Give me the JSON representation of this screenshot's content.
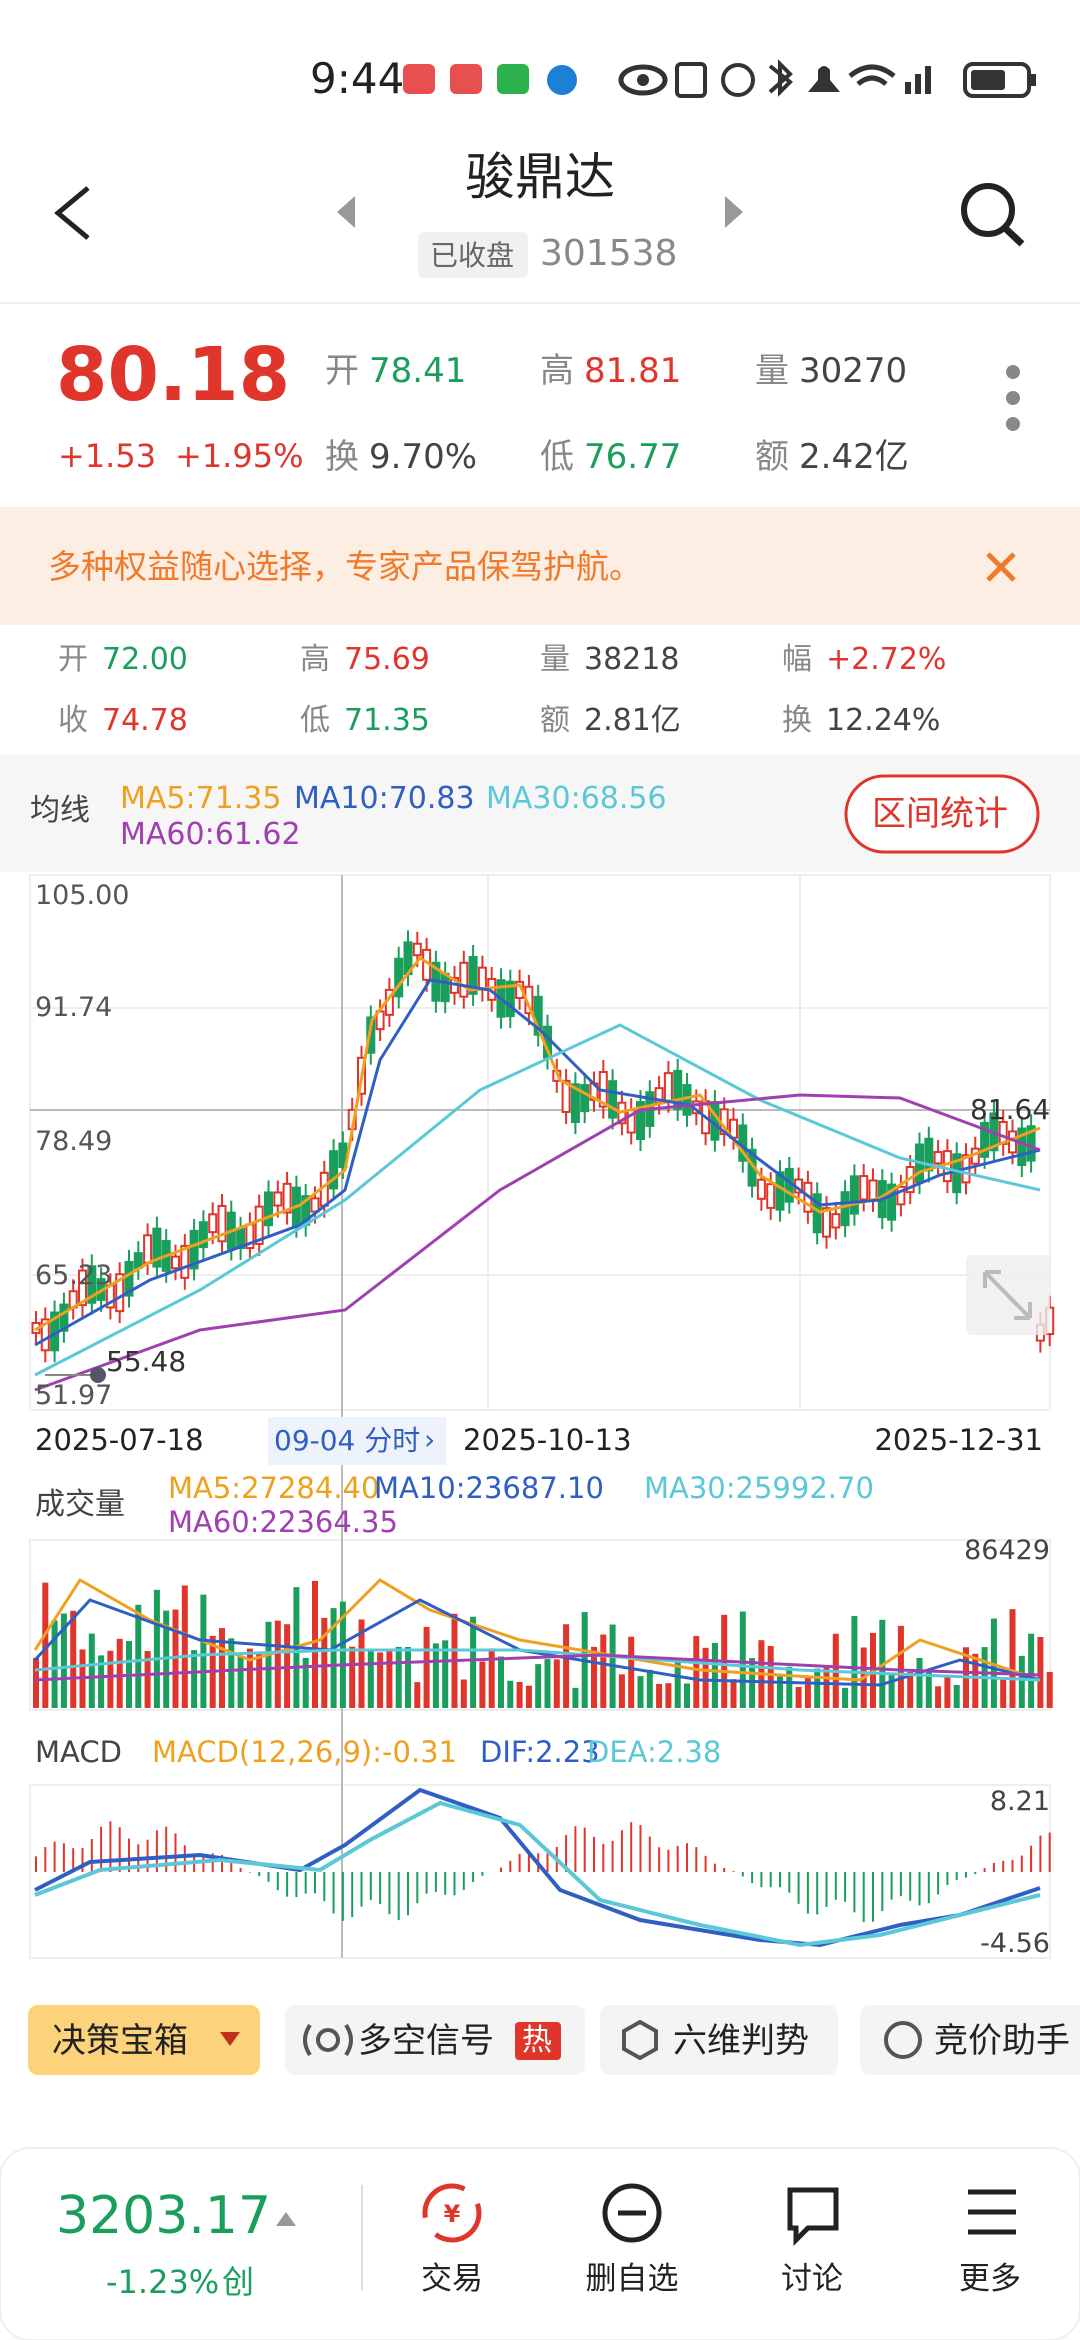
{
  "status_bar": {
    "time": "9:44"
  },
  "header": {
    "title": "骏鼎达",
    "status": "已收盘",
    "code": "301538"
  },
  "quote": {
    "price": "80.18",
    "change": "+1.53",
    "change_pct": "+1.95%",
    "items": [
      {
        "label": "开",
        "value": "78.41"
      },
      {
        "label": "高",
        "value": "81.81"
      },
      {
        "label": "量",
        "value": "30270"
      },
      {
        "label": "换",
        "value": "9.70%"
      },
      {
        "label": "低",
        "value": "76.77"
      },
      {
        "label": "额",
        "value": "2.42亿"
      }
    ]
  },
  "banner": {
    "text": "多种权益随心选择，专家产品保驾护航。"
  },
  "day": {
    "items": [
      {
        "label": "开",
        "value": "72.00"
      },
      {
        "label": "高",
        "value": "75.69"
      },
      {
        "label": "量",
        "value": "38218"
      },
      {
        "label": "幅",
        "value": "+2.72%"
      },
      {
        "label": "收",
        "value": "74.78"
      },
      {
        "label": "低",
        "value": "71.35"
      },
      {
        "label": "额",
        "value": "2.81亿"
      },
      {
        "label": "换",
        "value": "12.24%"
      }
    ]
  },
  "ma": {
    "label": "均线",
    "ma5": "MA5:71.35",
    "ma10": "MA10:70.83",
    "ma30": "MA30:68.56",
    "ma60": "MA60:61.62",
    "button": "区间统计"
  },
  "price_chart": {
    "axis": [
      "105.00",
      "91.74",
      "78.49",
      "65.23",
      "51.97"
    ],
    "high_label": "81.64",
    "low_label": "55.48",
    "dates": [
      "2025-07-18",
      "2025-10-13",
      "2025-12-31"
    ],
    "intraday": "09-04 分时"
  },
  "volume": {
    "label": "成交量",
    "ma5": "MA5:27284.40",
    "ma10": "MA10:23687.10",
    "ma30": "MA30:25992.70",
    "ma60": "MA60:22364.35",
    "max": "86429"
  },
  "macd": {
    "label": "MACD",
    "macd": "MACD(12,26,9):-0.31",
    "dif": "DIF:2.23",
    "dea": "DEA:2.38",
    "max": "8.21",
    "min": "-4.56"
  },
  "tools": [
    "决策宝箱",
    "多空信号",
    "热",
    "六维判势",
    "竞价助手"
  ],
  "footer": {
    "index": "3203.17",
    "index_change": "-1.23%",
    "index_name": "创",
    "nav": [
      "交易",
      "删自选",
      "讨论",
      "更多"
    ]
  }
}
